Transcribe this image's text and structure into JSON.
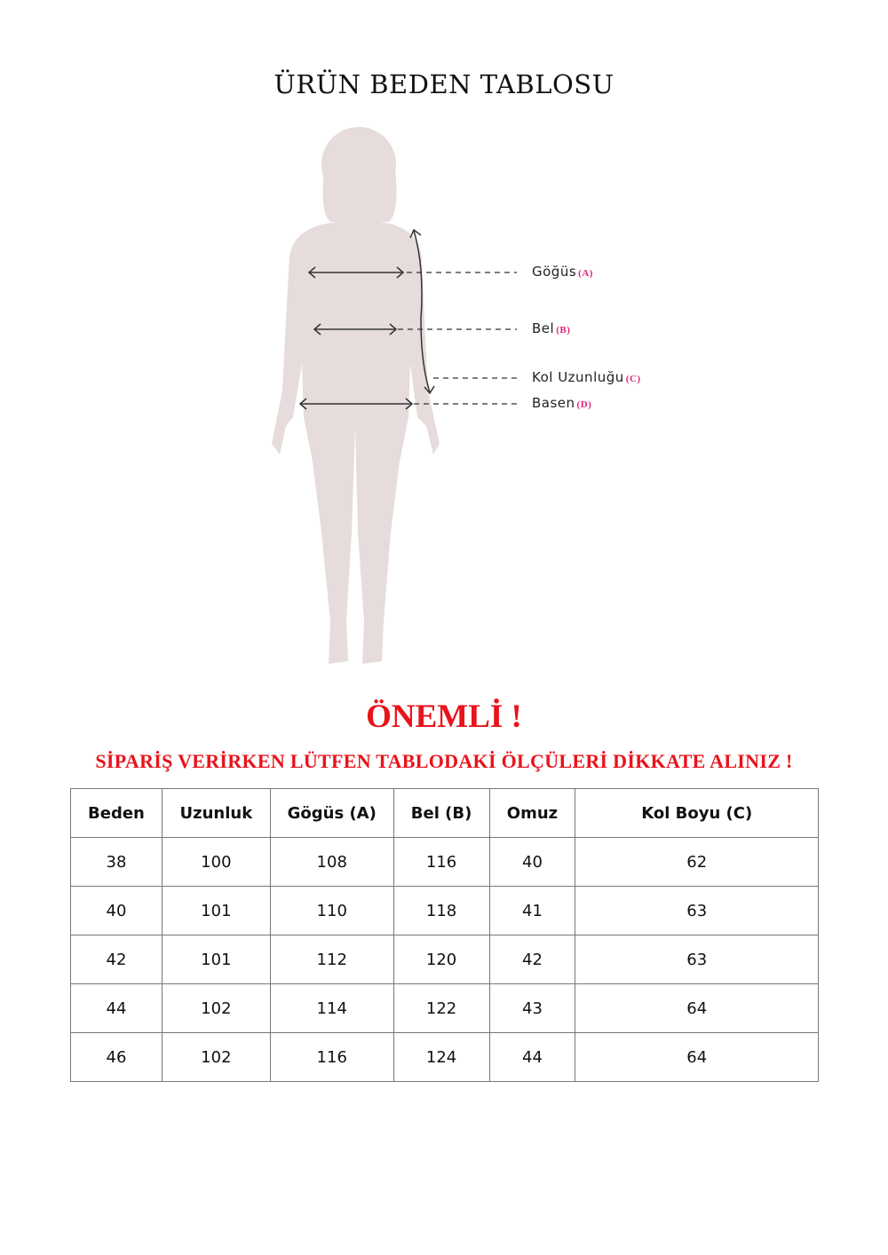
{
  "title": "ÜRÜN BEDEN TABLOSU",
  "diagram": {
    "figure_color": "#e6dcdc",
    "labels": [
      {
        "text": "Göğüs",
        "key": "(A)"
      },
      {
        "text": "Bel",
        "key": "(B)"
      },
      {
        "text": "Kol Uzunluğu",
        "key": "(C)"
      },
      {
        "text": "Basen",
        "key": "(D)"
      }
    ]
  },
  "important": "ÖNEMLİ !",
  "note": "SİPARİŞ VERİRKEN LÜTFEN TABLODAKİ ÖLÇÜLERİ DİKKATE ALINIZ !",
  "table": {
    "headers": [
      "Beden",
      "Uzunluk",
      "Gögüs (A)",
      "Bel (B)",
      "Omuz",
      "Kol Boyu (C)"
    ],
    "rows": [
      [
        "38",
        "100",
        "108",
        "116",
        "40",
        "62"
      ],
      [
        "40",
        "101",
        "110",
        "118",
        "41",
        "63"
      ],
      [
        "42",
        "101",
        "112",
        "120",
        "42",
        "63"
      ],
      [
        "44",
        "102",
        "114",
        "122",
        "43",
        "64"
      ],
      [
        "46",
        "102",
        "116",
        "124",
        "44",
        "64"
      ]
    ]
  },
  "colors": {
    "accent_red": "#e8131b",
    "key_pink": "#e0207a"
  }
}
